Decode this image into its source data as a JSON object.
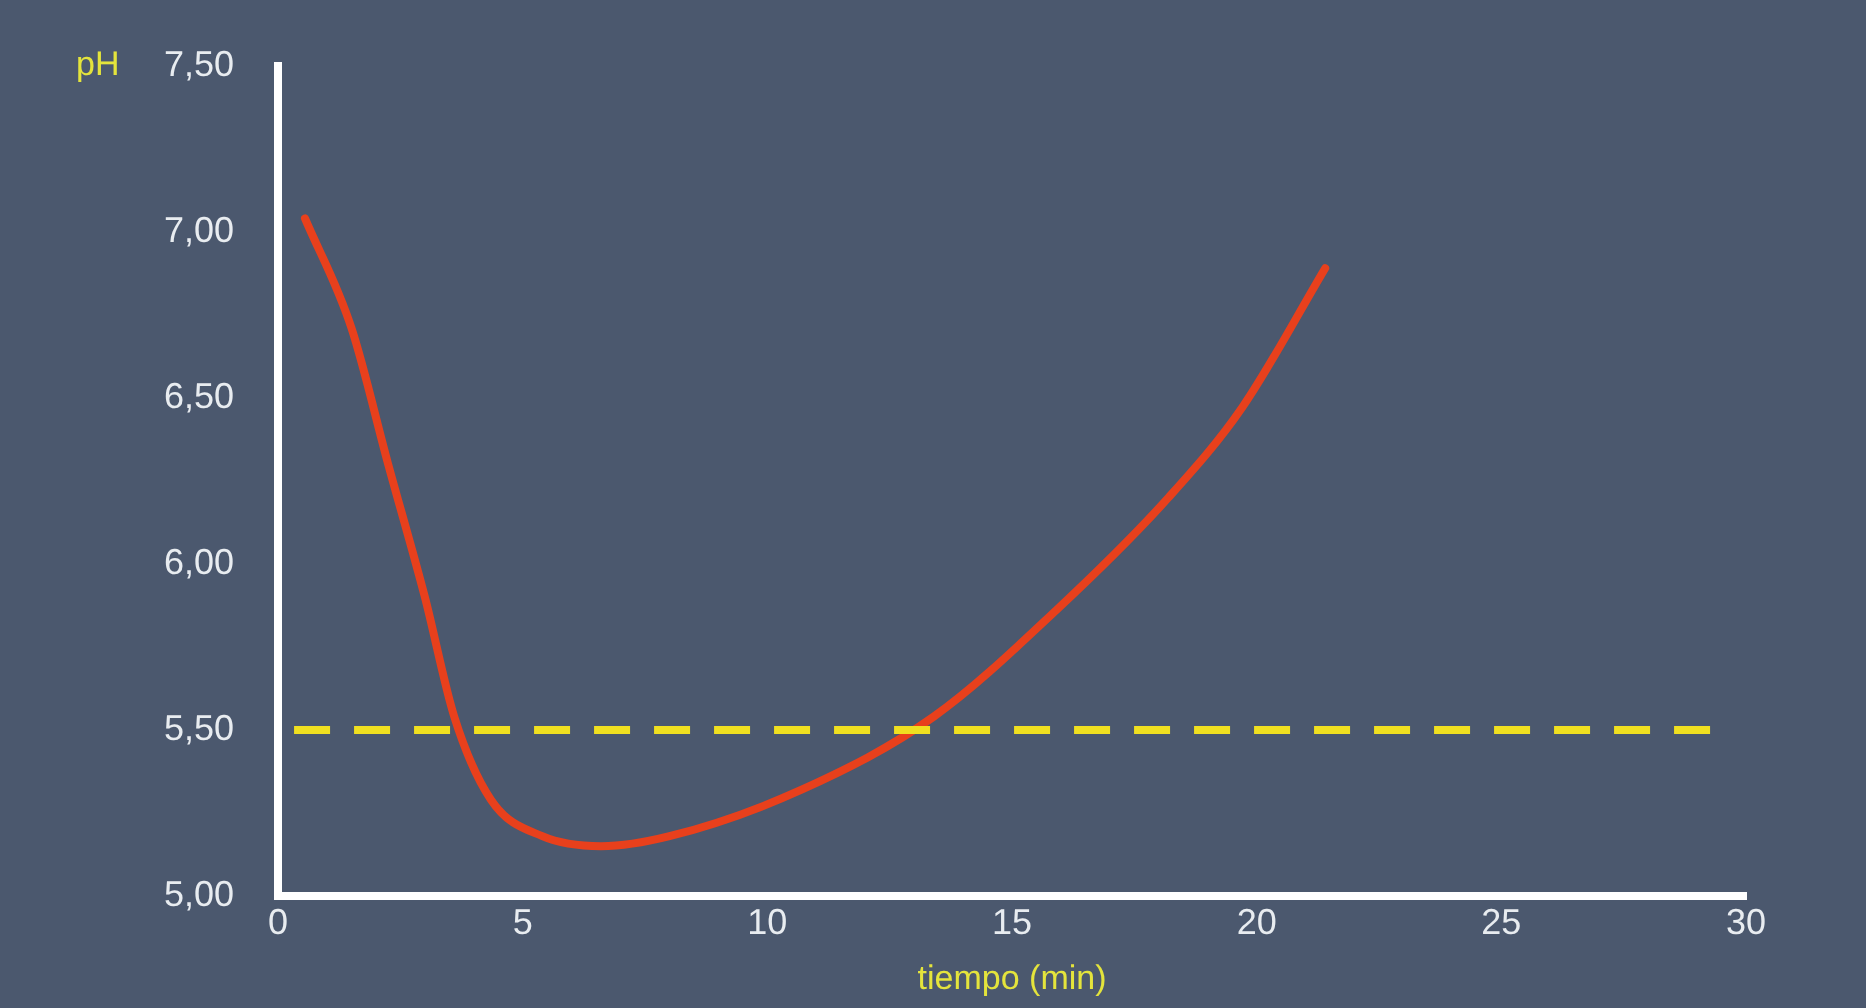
{
  "chart_data": {
    "type": "line",
    "xlabel": "tiempo (min)",
    "ylabel": "pH",
    "series": [
      {
        "color": "#e8401c",
        "x": [
          0.55,
          1.5,
          2.25,
          3.0,
          3.6,
          4.35,
          5.4,
          6.6,
          8.0,
          10.7,
          13.4,
          15.9,
          18.2,
          19.7,
          21.4
        ],
        "values": [
          7.04,
          6.71,
          6.3,
          5.9,
          5.54,
          5.29,
          5.18,
          5.15,
          5.18,
          5.32,
          5.54,
          5.86,
          6.2,
          6.47,
          6.89
        ]
      }
    ],
    "xlim": [
      0,
      30
    ],
    "xticks": [
      0,
      5,
      10,
      15,
      20,
      25,
      30
    ],
    "ylim": [
      5,
      7.5
    ],
    "yticks": [
      {
        "value": 5,
        "label": "5,00"
      },
      {
        "value": 5.5,
        "label": "5,50"
      },
      {
        "value": 6,
        "label": "6,00"
      },
      {
        "value": 6.5,
        "label": "6,50"
      },
      {
        "value": 7,
        "label": "7,00"
      },
      {
        "value": 7.5,
        "label": "7,50"
      }
    ],
    "ref_lines": [
      {
        "axis": "y",
        "value": 5.5,
        "color": "#f0e020",
        "line_style": "dashed"
      }
    ],
    "grid": false,
    "legend": false,
    "marker": "none",
    "line_style": "solid"
  }
}
